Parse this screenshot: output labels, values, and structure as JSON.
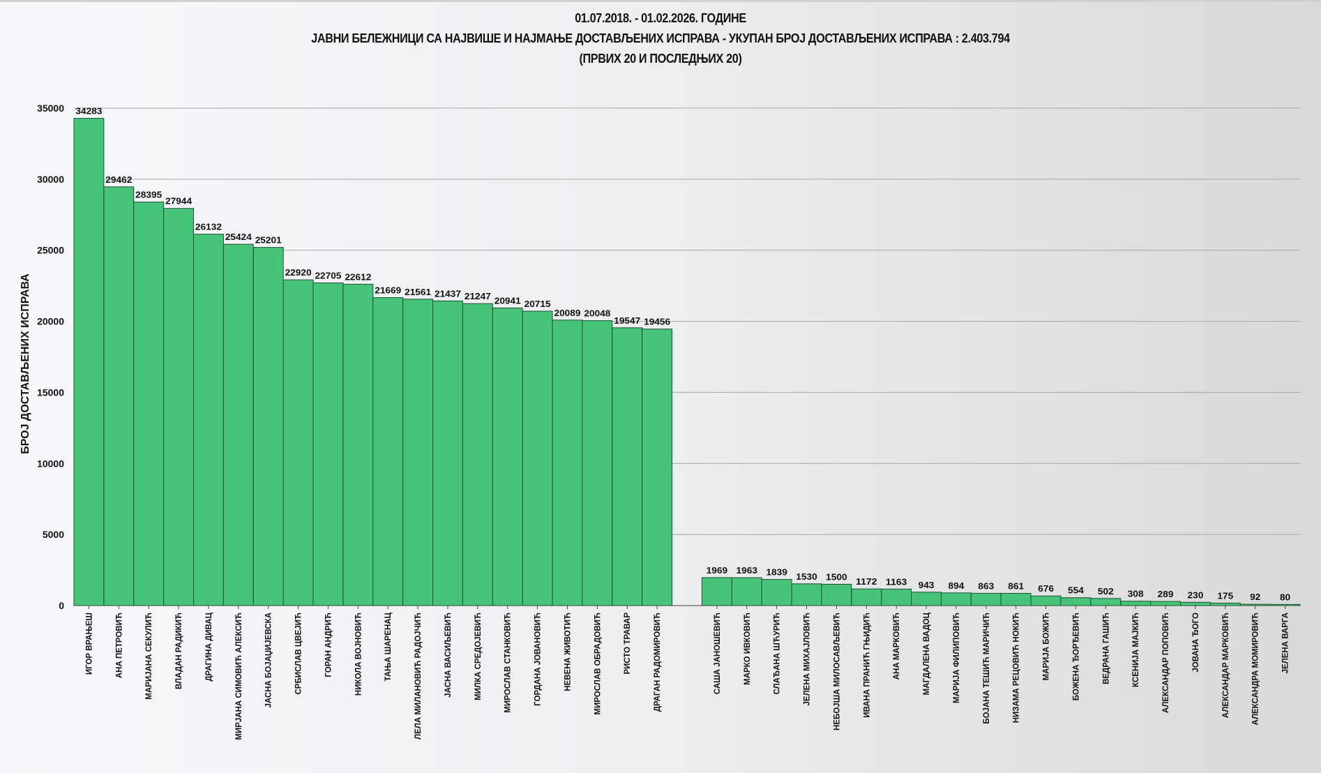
{
  "chart_data": {
    "type": "bar",
    "title": [
      "01.07.2018. - 01.02.2026. ГОДИНЕ",
      "ЈАВНИ БЕЛЕЖНИЦИ СА НАЈВИШЕ И НАЈМАЊЕ ДОСТАВЉЕНИХ ИСПРАВА - УКУПАН БРОЈ ДОСТАВЉЕНИХ ИСПРАВА : 2.403.794",
      "(ПРВИХ 20 И ПОСЛЕДЊИХ 20)"
    ],
    "ylabel": "БРОЈ ДОСТАВЉЕНИХ ИСПРАВА",
    "xlabel": "",
    "ylim": [
      0,
      35000
    ],
    "yticks": [
      0,
      5000,
      10000,
      15000,
      20000,
      25000,
      30000,
      35000
    ],
    "grid": true,
    "bar_color": "#47c47a",
    "groups": [
      {
        "categories": [
          "ИГОР ВРАЊЕШ",
          "АНА ПЕТРОВИЋ",
          "МАРИЈАНА СЕКУЛИЋ",
          "ВЛАДАН РАДИКИЋ",
          "ДРАГИНА ДИВАЦ",
          "МИРЈАНА СИМОВИЋ АЛЕКСИЋ",
          "ЈАСНА БОЈАЏИЈЕВСКА",
          "СРБИСЛАВ ЦВЕЈИЋ",
          "ГОРАН АНДРИЋ",
          "НИКОЛА ВОЈНОВИЋ",
          "ТАЊА ШАРЕНАЦ",
          "ЛЕЛА МИЛАНОВИЋ РАДОЈЧИЋ",
          "ЈАСНА ВАСИЉЕВИЋ",
          "МИЛКА СРЕДОЈЕВИЋ",
          "МИРОСЛАВ СТАНКОВИЋ",
          "ГОРДАНА ЈОВАНОВИЋ",
          "НЕВЕНА ЖИВОТИЋ",
          "МИРОСЛАВ ОБРАДОВИЋ",
          "РИСТО ТРАВАР",
          "ДРАГАН РАДОМИРОВИЋ"
        ],
        "values": [
          34283,
          29462,
          28395,
          27944,
          26132,
          25424,
          25201,
          22920,
          22705,
          22612,
          21669,
          21561,
          21437,
          21247,
          20941,
          20715,
          20089,
          20048,
          19547,
          19456
        ]
      },
      {
        "categories": [
          "САША ЈАНОШЕВИЋ",
          "МАРКО ИВКОВИЋ",
          "СЛАЂАНА ШЋУРИЋ",
          "ЈЕЛЕНА МИХАЈЛОВИЋ",
          "НЕБОЈША МИЛОСАВЉЕВИЋ",
          "ИВАНА ПРАНИЋ ГЊИДИЋ",
          "АНА МАРКОВИЋ",
          "МАГДАЛЕНА ВАДОЦ",
          "МАРИЈА ФИЛИПОВИЋ",
          "БОЈАНА ТЕШИЋ МАРИЧИЋ",
          "НИЗАМА РЕЦОВИЋ НОКИЋ",
          "МАРИЈА БОЖИЋ",
          "БОЖЕНА ЂОРЂЕВИЋ",
          "ВЕДРАНА ГАШИЋ",
          "КСЕНИЈА МАЈКИЋ",
          "АЛЕКСАНДАР ПОПОВИЋ",
          "ЈОВАНА ЂОГО",
          "АЛЕКСАНДАР МАРКОВИЋ",
          "АЛЕКСАНДРА МОМИРОВИЋ",
          "ЈЕЛЕНА ВАРГА"
        ],
        "values": [
          1969,
          1963,
          1839,
          1530,
          1500,
          1172,
          1163,
          943,
          894,
          863,
          861,
          676,
          554,
          502,
          308,
          289,
          230,
          175,
          92,
          80
        ]
      }
    ]
  }
}
